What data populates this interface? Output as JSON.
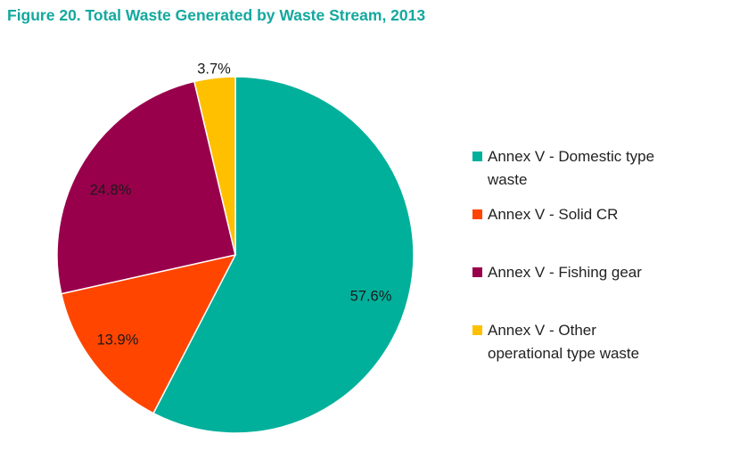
{
  "title": "Figure 20. Total Waste Generated by Waste Stream, 2013",
  "chart_data": {
    "type": "pie",
    "title": "Figure 20. Total Waste Generated by Waste Stream, 2013",
    "start_angle_deg": 0,
    "direction": "clockwise",
    "legend_position": "right",
    "slices": [
      {
        "name": "Annex V - Domestic type waste",
        "value": 57.6,
        "label": "57.6%",
        "color": "#00b09b"
      },
      {
        "name": "Annex V - Solid CR",
        "value": 13.9,
        "label": "13.9%",
        "color": "#ff4500"
      },
      {
        "name": "Annex V - Fishing gear",
        "value": 24.8,
        "label": "24.8%",
        "color": "#99004c"
      },
      {
        "name": "Annex V - Other operational type waste",
        "value": 3.7,
        "label": "3.7%",
        "color": "#ffc000"
      }
    ]
  },
  "legend": {
    "items": [
      {
        "line1": "Annex V - Domestic type",
        "line2": "waste",
        "color": "#00b09b"
      },
      {
        "line1": "Annex V - Solid CR",
        "line2": "",
        "color": "#ff4500"
      },
      {
        "line1": "Annex V - Fishing gear",
        "line2": "",
        "color": "#99004c"
      },
      {
        "line1": "Annex V - Other",
        "line2": "operational type waste",
        "color": "#ffc000"
      }
    ]
  }
}
